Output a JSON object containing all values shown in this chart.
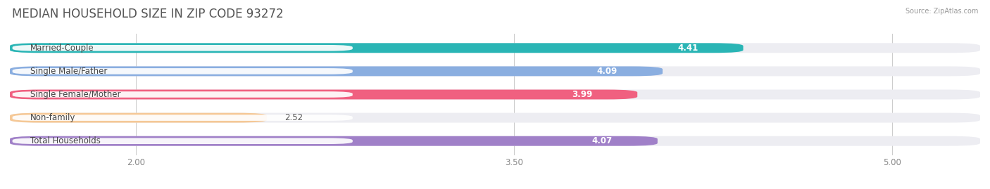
{
  "title": "MEDIAN HOUSEHOLD SIZE IN ZIP CODE 93272",
  "source": "Source: ZipAtlas.com",
  "categories": [
    "Married-Couple",
    "Single Male/Father",
    "Single Female/Mother",
    "Non-family",
    "Total Households"
  ],
  "values": [
    4.41,
    4.09,
    3.99,
    2.52,
    4.07
  ],
  "bar_colors": [
    "#2ab5b5",
    "#8aaee0",
    "#f06080",
    "#f5c896",
    "#a080c8"
  ],
  "track_color": "#ededf2",
  "xlim_left": 1.5,
  "xlim_right": 5.35,
  "data_min": 1.5,
  "xticks": [
    2.0,
    3.5,
    5.0
  ],
  "xtick_labels": [
    "2.00",
    "3.50",
    "5.00"
  ],
  "title_fontsize": 12,
  "label_fontsize": 8.5,
  "value_fontsize": 8.5,
  "bar_height": 0.42,
  "bar_gap": 1.0,
  "background_color": "#ffffff"
}
